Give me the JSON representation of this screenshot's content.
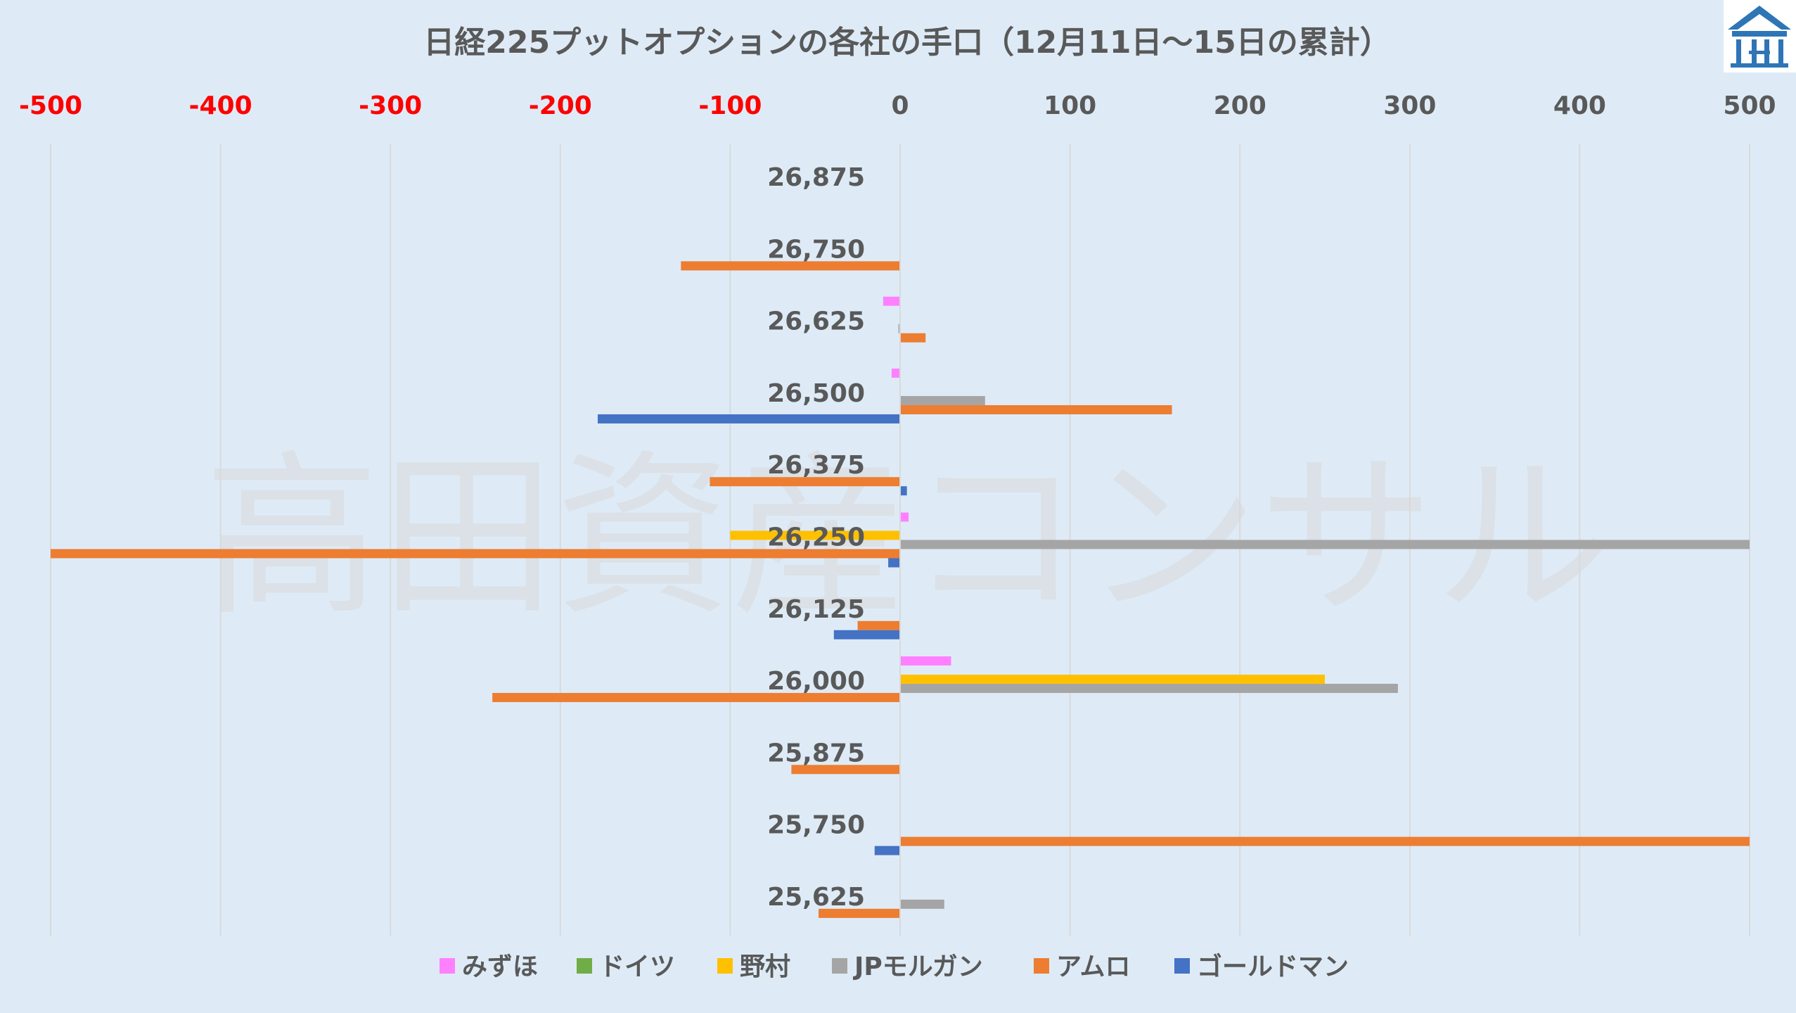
{
  "chart_data": {
    "type": "bar",
    "orientation": "horizontal",
    "title": "日経225プットオプションの各社の手口（12月11日～15日の累計）",
    "watermark": "高田資産コンサル",
    "xlim": [
      -500,
      500
    ],
    "x_ticks": [
      -500,
      -400,
      -300,
      -200,
      -100,
      0,
      100,
      200,
      300,
      400,
      500
    ],
    "x_tick_labels": [
      "-500",
      "-400",
      "-300",
      "-200",
      "-100",
      "0",
      "100",
      "200",
      "300",
      "400",
      "500"
    ],
    "negative_tick_color": "#ff0000",
    "positive_tick_color": "#595959",
    "gridlines": true,
    "legend_position": "bottom",
    "categories": [
      "26,875",
      "26,750",
      "26,625",
      "26,500",
      "26,375",
      "26,250",
      "26,125",
      "26,000",
      "25,875",
      "25,750",
      "25,625"
    ],
    "series": [
      {
        "name": "みずほ",
        "color": "#ff80ff",
        "values": [
          0,
          0,
          -10,
          -5,
          0,
          5,
          0,
          30,
          0,
          0,
          0
        ]
      },
      {
        "name": "ドイツ",
        "color": "#70ad47",
        "values": [
          0,
          0,
          0,
          0,
          0,
          0,
          0,
          0,
          0,
          0,
          0
        ]
      },
      {
        "name": "野村",
        "color": "#ffc000",
        "values": [
          0,
          0,
          0,
          0,
          0,
          -100,
          0,
          250,
          0,
          0,
          0
        ]
      },
      {
        "name": "JPモルガン",
        "color": "#a5a5a5",
        "values": [
          0,
          0,
          -1,
          50,
          0,
          500,
          0,
          293,
          0,
          0,
          26
        ]
      },
      {
        "name": "アムロ",
        "color": "#ed7d31",
        "values": [
          0,
          -129,
          15,
          160,
          -112,
          -500,
          -25,
          -240,
          -64,
          500,
          -48
        ]
      },
      {
        "name": "ゴールドマン",
        "color": "#4472c4",
        "values": [
          0,
          0,
          0,
          -178,
          4,
          -7,
          -39,
          0,
          0,
          -15,
          0
        ]
      }
    ]
  },
  "logo": {
    "icon": "building-logo-icon",
    "color": "#2e75b6"
  }
}
